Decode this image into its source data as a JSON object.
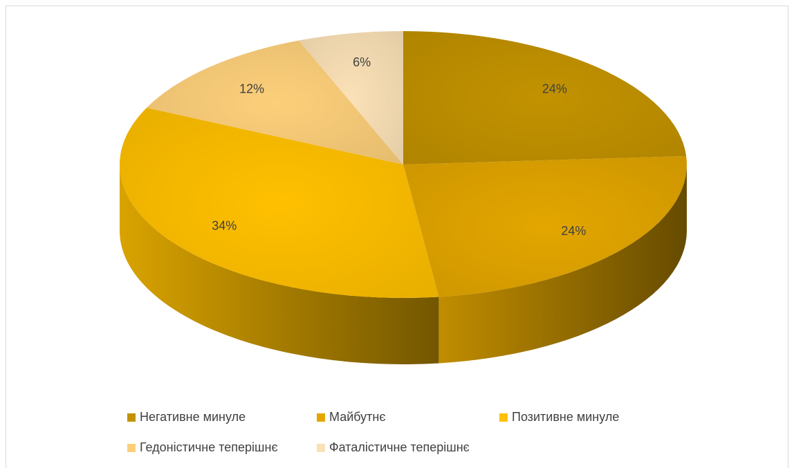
{
  "chart_data": {
    "type": "pie",
    "style": "3d",
    "title": "",
    "legend_position": "bottom",
    "categories": [
      "Негативне минуле",
      "Майбутнє",
      "Позитивне минуле",
      "Гедоністичне теперішнє",
      "Фаталістичне теперішнє"
    ],
    "values": [
      24,
      24,
      34,
      12,
      6
    ],
    "labels": [
      "24%",
      "24%",
      "34%",
      "12%",
      "6%"
    ],
    "colors": [
      "#C29200",
      "#E3A600",
      "#FFC000",
      "#FCCF7A",
      "#FBE1B7"
    ]
  }
}
